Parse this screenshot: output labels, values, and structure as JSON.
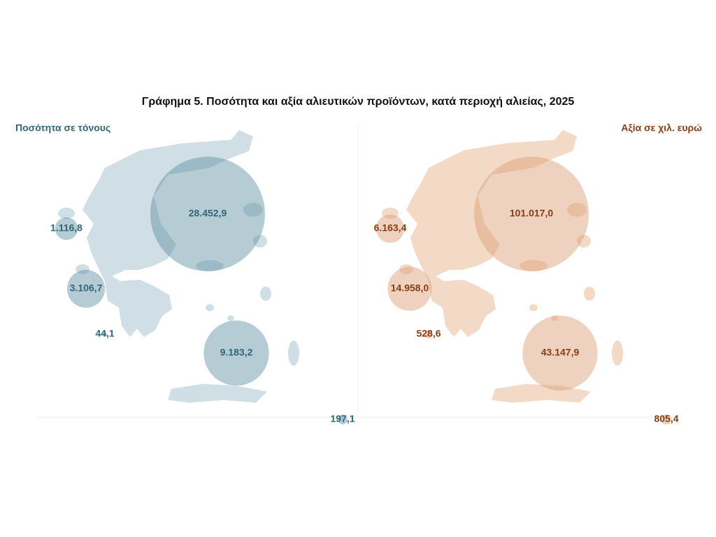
{
  "title": "Γράφημα 5. Ποσότητα και αξία αλιευτικών προϊόντων, κατά περιοχή αλιείας, 2025",
  "chart_data": [
    {
      "type": "bubble",
      "subtitle": "Ποσότητα σε τόνους",
      "color": "#5e8fa0",
      "label_color": "#2f6678",
      "map_color": "#cfdfe5",
      "values": [
        28452.9,
        1116.8,
        3106.7,
        44.1,
        9183.2,
        197.1
      ],
      "value_labels": [
        "28.452,9",
        "1.116,8",
        "3.106,7",
        "44,1",
        "9.183,2",
        "197,1"
      ]
    },
    {
      "type": "bubble",
      "subtitle": "Αξία σε χιλ. ευρώ",
      "color": "#d99c72",
      "label_color": "#8a3d12",
      "map_color": "#f2dac7",
      "values": [
        101017.0,
        6163.4,
        14958.0,
        528.6,
        43147.9,
        805.4
      ],
      "value_labels": [
        "101.017,0",
        "6.163,4",
        "14.958,0",
        "528,6",
        "43.147,9",
        "805,4"
      ]
    }
  ]
}
